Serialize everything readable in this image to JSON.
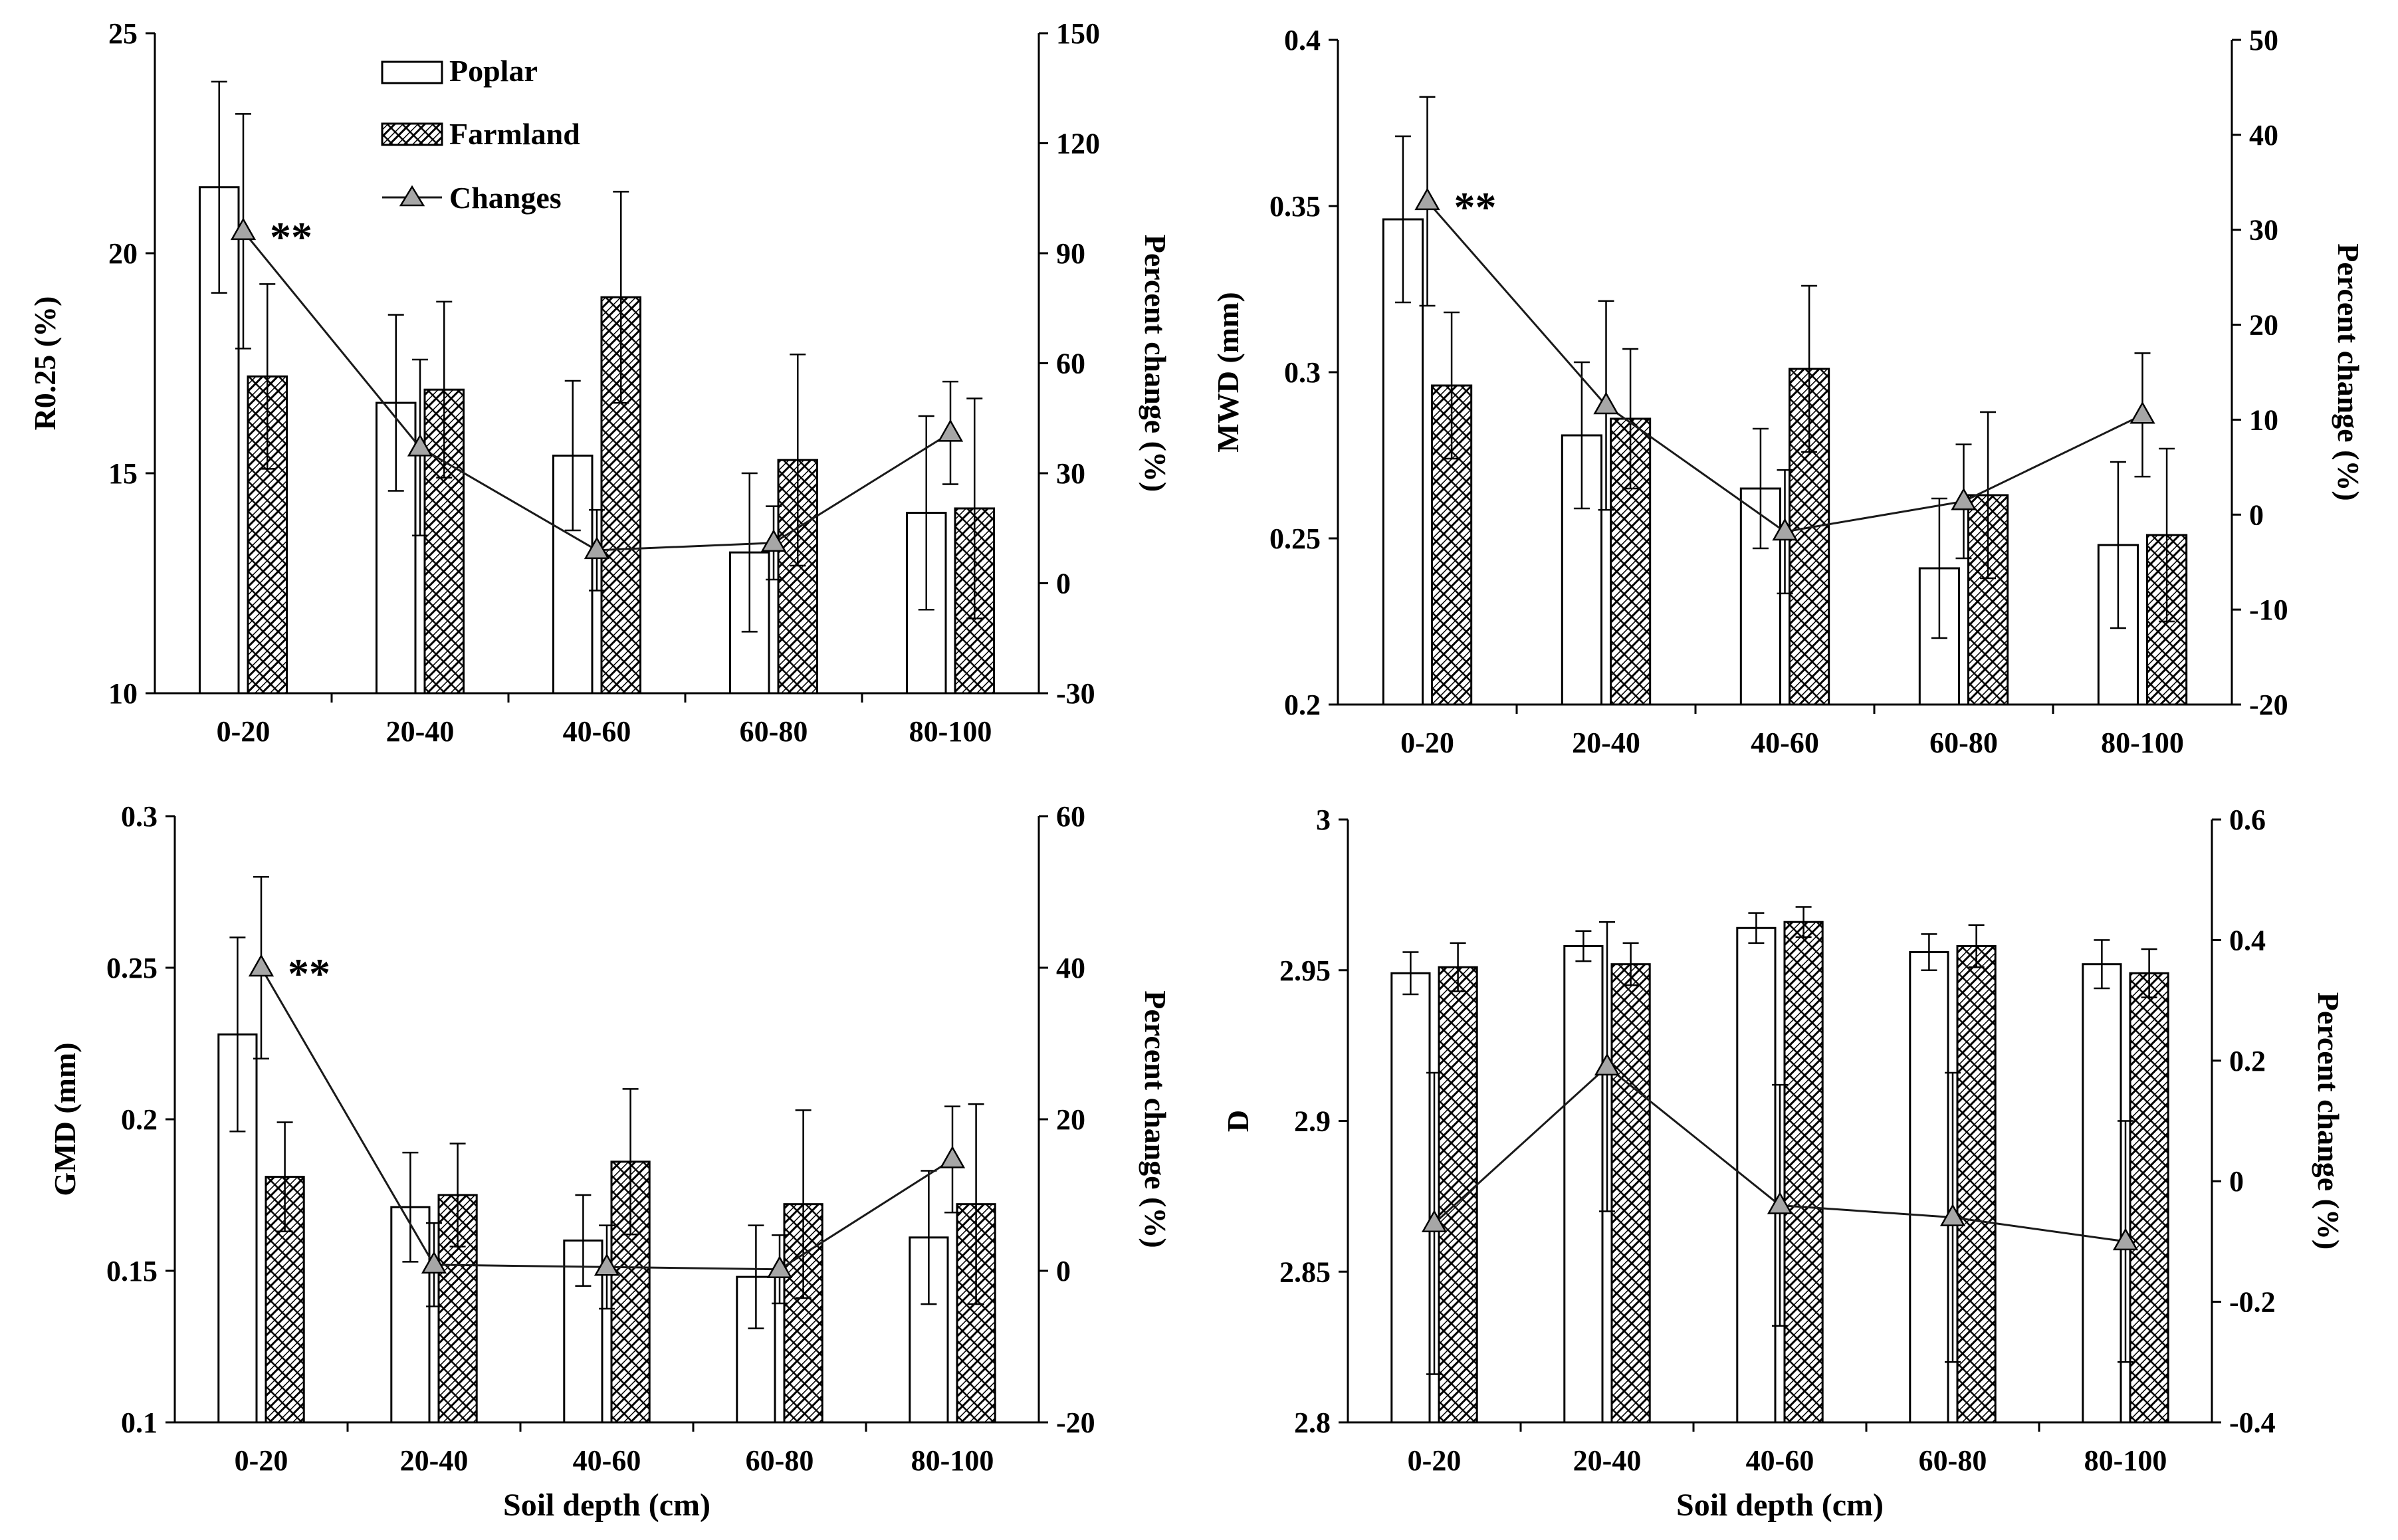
{
  "legend": {
    "poplar": "Poplar",
    "farmland": "Farmland",
    "changes": "Changes"
  },
  "colors": {
    "poplar_fill": "#ffffff",
    "farmland_hatch": "#000000",
    "changes_marker": "#a6a6a6",
    "line": "#1a1a1a"
  },
  "chart_data": [
    {
      "id": "r025",
      "type": "bar",
      "categories": [
        "0-20",
        "20-40",
        "40-60",
        "60-80",
        "80-100"
      ],
      "ylabel": "R0.25 (%)",
      "ylim": [
        10,
        25
      ],
      "yticks": [
        "10",
        "15",
        "20",
        "25"
      ],
      "y2label": "Percent change (%)",
      "y2lim": [
        -30,
        150
      ],
      "y2ticks": [
        "-30",
        "0",
        "30",
        "60",
        "90",
        "120",
        "150"
      ],
      "xlabel": "",
      "annotation": "**",
      "annotation_index": 0,
      "series": [
        {
          "name": "Poplar",
          "values": [
            21.5,
            16.6,
            15.4,
            13.2,
            14.1
          ],
          "errors": [
            2.4,
            2.0,
            1.7,
            1.8,
            2.2
          ]
        },
        {
          "name": "Farmland",
          "values": [
            17.2,
            16.9,
            19.0,
            15.3,
            14.2
          ],
          "errors": [
            2.1,
            2.0,
            2.4,
            2.4,
            2.5
          ]
        },
        {
          "name": "Changes",
          "values": [
            96,
            37,
            9,
            11,
            41
          ],
          "errors": [
            32,
            24,
            11,
            10,
            14
          ]
        }
      ]
    },
    {
      "id": "mwd",
      "type": "bar",
      "categories": [
        "0-20",
        "20-40",
        "40-60",
        "60-80",
        "80-100"
      ],
      "ylabel": "MWD (mm)",
      "ylim": [
        0.2,
        0.4
      ],
      "yticks": [
        "0.2",
        "0.25",
        "0.3",
        "0.35",
        "0.4"
      ],
      "y2label": "Percent change (%)",
      "y2lim": [
        -20,
        50
      ],
      "y2ticks": [
        "-20",
        "-10",
        "0",
        "10",
        "20",
        "30",
        "40",
        "50"
      ],
      "xlabel": "",
      "annotation": "**",
      "annotation_index": 0,
      "series": [
        {
          "name": "Poplar",
          "values": [
            0.346,
            0.281,
            0.265,
            0.241,
            0.248
          ],
          "errors": [
            0.025,
            0.022,
            0.018,
            0.021,
            0.025
          ]
        },
        {
          "name": "Farmland",
          "values": [
            0.296,
            0.286,
            0.301,
            0.263,
            0.251
          ],
          "errors": [
            0.022,
            0.021,
            0.025,
            0.025,
            0.026
          ]
        },
        {
          "name": "Changes",
          "values": [
            33,
            11.5,
            -1.8,
            1.4,
            10.5
          ],
          "errors": [
            11,
            11,
            6.5,
            6,
            6.5
          ]
        }
      ]
    },
    {
      "id": "gmd",
      "type": "bar",
      "categories": [
        "0-20",
        "20-40",
        "40-60",
        "60-80",
        "80-100"
      ],
      "ylabel": "GMD (mm)",
      "ylim": [
        0.1,
        0.3
      ],
      "yticks": [
        "0.1",
        "0.15",
        "0.2",
        "0.25",
        "0.3"
      ],
      "y2label": "Percent change (%)",
      "y2lim": [
        -20,
        60
      ],
      "y2ticks": [
        "-20",
        "0",
        "20",
        "40",
        "60"
      ],
      "xlabel": "Soil depth (cm)",
      "annotation": "**",
      "annotation_index": 0,
      "series": [
        {
          "name": "Poplar",
          "values": [
            0.228,
            0.171,
            0.16,
            0.148,
            0.161
          ],
          "errors": [
            0.032,
            0.018,
            0.015,
            0.017,
            0.022
          ]
        },
        {
          "name": "Farmland",
          "values": [
            0.181,
            0.175,
            0.186,
            0.172,
            0.172
          ],
          "errors": [
            0.018,
            0.017,
            0.024,
            0.031,
            0.033
          ]
        },
        {
          "name": "Changes",
          "values": [
            40,
            0.8,
            0.5,
            0.2,
            14.7
          ],
          "errors": [
            12,
            5.5,
            5.5,
            4.5,
            7
          ]
        }
      ]
    },
    {
      "id": "d",
      "type": "bar",
      "categories": [
        "0-20",
        "20-40",
        "40-60",
        "60-80",
        "80-100"
      ],
      "ylabel": "D",
      "ylim": [
        2.8,
        3.0
      ],
      "yticks": [
        "2.8",
        "2.85",
        "2.9",
        "2.95",
        "3"
      ],
      "y2label": "Percent change (%)",
      "y2lim": [
        -0.4,
        0.6
      ],
      "y2ticks": [
        "-0.4",
        "-0.2",
        "0",
        "0.2",
        "0.4",
        "0.6"
      ],
      "xlabel": "Soil depth (cm)",
      "annotation": "",
      "annotation_index": 0,
      "series": [
        {
          "name": "Poplar",
          "values": [
            2.949,
            2.958,
            2.964,
            2.956,
            2.952
          ],
          "errors": [
            0.007,
            0.005,
            0.005,
            0.006,
            0.008
          ]
        },
        {
          "name": "Farmland",
          "values": [
            2.951,
            2.952,
            2.966,
            2.958,
            2.949
          ],
          "errors": [
            0.008,
            0.007,
            0.005,
            0.007,
            0.008
          ]
        },
        {
          "name": "Changes",
          "values": [
            -0.07,
            0.19,
            -0.04,
            -0.06,
            -0.1
          ],
          "errors": [
            0.25,
            0.24,
            0.2,
            0.24,
            0.2
          ]
        }
      ]
    }
  ]
}
